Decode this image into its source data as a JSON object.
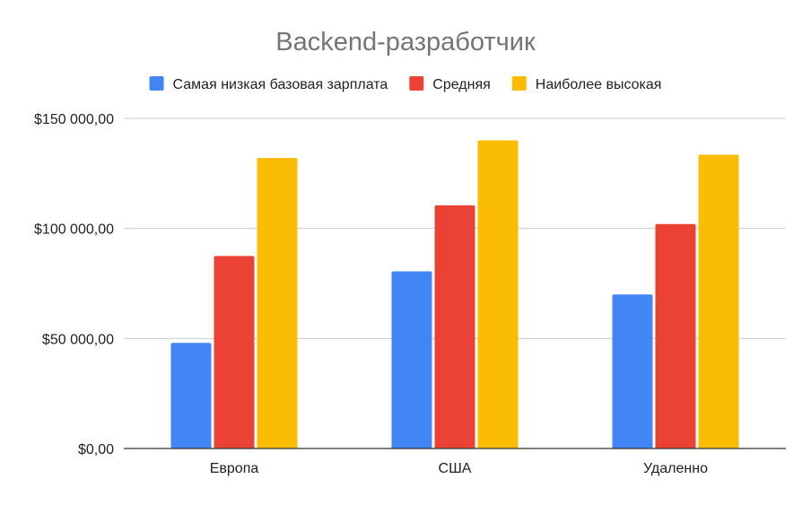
{
  "chart_data": {
    "type": "bar",
    "title": "Backend-разработчик",
    "categories": [
      "Европа",
      "США",
      "Удаленно"
    ],
    "series": [
      {
        "name": "Самая низкая базовая зарплата",
        "color": "#4285F4",
        "values": [
          48000,
          80500,
          70000
        ]
      },
      {
        "name": "Средняя",
        "color": "#EA4335",
        "values": [
          87500,
          110500,
          102000
        ]
      },
      {
        "name": "Наиболее высокая",
        "color": "#FBBC04",
        "values": [
          132000,
          140000,
          133500
        ]
      }
    ],
    "ylim": [
      0,
      150000
    ],
    "yticks": [
      0,
      50000,
      100000,
      150000
    ],
    "ytick_labels": [
      "$0,00",
      "$50 000,00",
      "$100 000,00",
      "$150 000,00"
    ],
    "legend_position": "top",
    "grid": true,
    "grid_color": "#cccccc",
    "axis_color": "#333333",
    "title_color": "#757575"
  }
}
